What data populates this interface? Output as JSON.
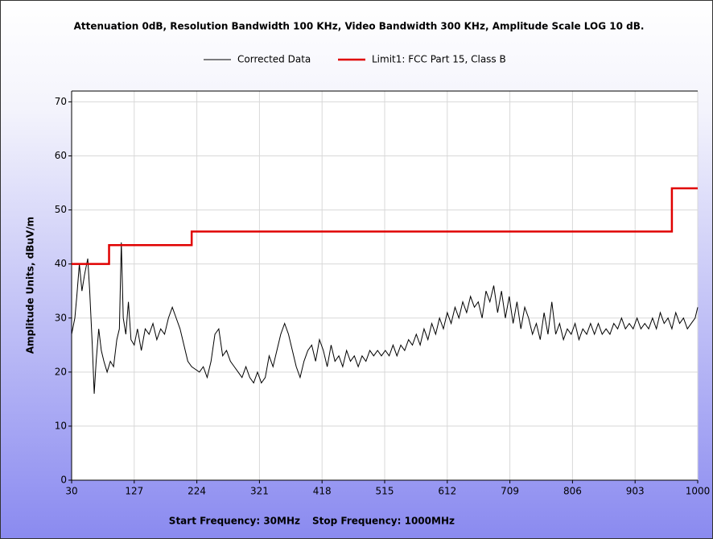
{
  "chart_data": {
    "type": "line",
    "title": "Attenuation 0dB, Resolution Bandwidth 100 KHz, Video Bandwidth 300 KHz, Amplitude Scale LOG 10 dB.",
    "ylabel": "Amplitude Units, dBuV/m",
    "annotations": [
      "Start Frequency: 30MHz",
      "Stop Frequency: 1000MHz"
    ],
    "xlim": [
      30,
      1000
    ],
    "xticks": [
      30,
      127,
      224,
      321,
      418,
      515,
      612,
      709,
      806,
      903,
      1000
    ],
    "ylim": [
      0,
      72
    ],
    "yticks": [
      0,
      10,
      20,
      30,
      40,
      50,
      60,
      70
    ],
    "grid": true,
    "legend": "top",
    "series": [
      {
        "name": "Corrected Data",
        "color": "#000000",
        "x": [
          30,
          35,
          38,
          42,
          46,
          50,
          55,
          58,
          62,
          65,
          68,
          72,
          76,
          80,
          85,
          90,
          95,
          100,
          104,
          107,
          110,
          114,
          118,
          122,
          127,
          132,
          138,
          144,
          150,
          156,
          162,
          168,
          174,
          180,
          186,
          192,
          198,
          204,
          210,
          216,
          222,
          228,
          234,
          240,
          246,
          252,
          258,
          264,
          270,
          276,
          282,
          288,
          294,
          300,
          306,
          312,
          318,
          324,
          330,
          336,
          342,
          348,
          354,
          360,
          366,
          372,
          378,
          384,
          390,
          396,
          402,
          408,
          414,
          420,
          426,
          432,
          438,
          444,
          450,
          456,
          462,
          468,
          474,
          480,
          486,
          492,
          498,
          504,
          510,
          516,
          522,
          528,
          534,
          540,
          546,
          552,
          558,
          564,
          570,
          576,
          582,
          588,
          594,
          600,
          606,
          612,
          618,
          624,
          630,
          636,
          642,
          648,
          654,
          660,
          666,
          672,
          678,
          684,
          690,
          696,
          702,
          708,
          714,
          720,
          726,
          732,
          738,
          744,
          750,
          756,
          762,
          768,
          774,
          780,
          786,
          792,
          798,
          804,
          810,
          816,
          822,
          828,
          834,
          840,
          846,
          852,
          858,
          864,
          870,
          876,
          882,
          888,
          894,
          900,
          906,
          912,
          918,
          924,
          930,
          936,
          942,
          948,
          954,
          960,
          966,
          972,
          978,
          984,
          990,
          996,
          1000
        ],
        "values": [
          27,
          30,
          34,
          40,
          35,
          38,
          41,
          35,
          25,
          16,
          22,
          28,
          24,
          22,
          20,
          22,
          21,
          26,
          28,
          44,
          30,
          27,
          33,
          26,
          25,
          28,
          24,
          28,
          27,
          29,
          26,
          28,
          27,
          30,
          32,
          30,
          28,
          25,
          22,
          21,
          20.5,
          20,
          21,
          19,
          22,
          27,
          28,
          23,
          24,
          22,
          21,
          20,
          19,
          21,
          19,
          18,
          20,
          18,
          19,
          23,
          21,
          24,
          27,
          29,
          27,
          24,
          21,
          19,
          22,
          24,
          25,
          22,
          26,
          24,
          21,
          25,
          22,
          23,
          21,
          24,
          22,
          23,
          21,
          23,
          22,
          24,
          23,
          24,
          23,
          24,
          23,
          25,
          23,
          25,
          24,
          26,
          25,
          27,
          25,
          28,
          26,
          29,
          27,
          30,
          28,
          31,
          29,
          32,
          30,
          33,
          31,
          34,
          32,
          33,
          30,
          35,
          33,
          36,
          31,
          35,
          30,
          34,
          29,
          33,
          28,
          32,
          30,
          27,
          29,
          26,
          31,
          27,
          33,
          27,
          29,
          26,
          28,
          27,
          29,
          26,
          28,
          27,
          29,
          27,
          29,
          27,
          28,
          27,
          29,
          28,
          30,
          28,
          29,
          28,
          30,
          28,
          29,
          28,
          30,
          28,
          31,
          29,
          30,
          28,
          31,
          29,
          30,
          28,
          29,
          30,
          32
        ]
      },
      {
        "name": "Limit1: FCC Part 15, Class B",
        "color": "#e00000",
        "x": [
          30,
          88,
          88,
          216,
          216,
          960,
          960,
          1000
        ],
        "values": [
          40,
          40,
          43.5,
          43.5,
          46,
          46,
          54,
          54
        ]
      }
    ]
  }
}
